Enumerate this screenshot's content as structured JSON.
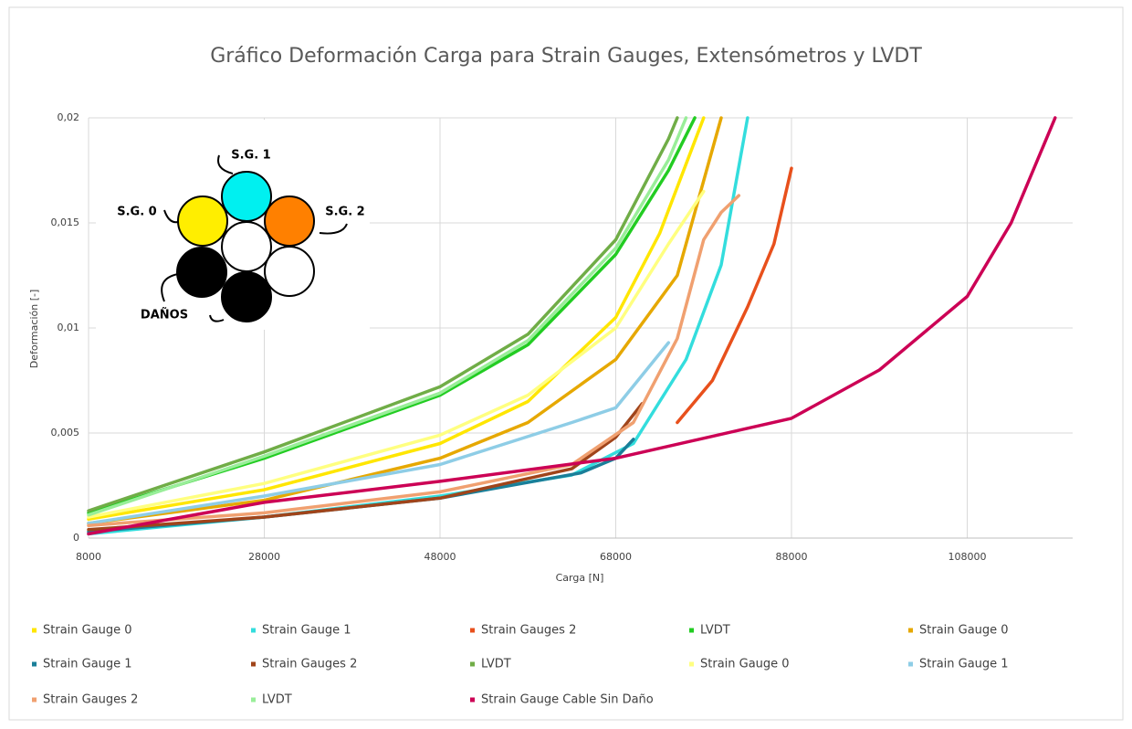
{
  "chart_data": {
    "type": "line",
    "title": "Gráfico Deformación Carga para Strain Gauges, Extensómetros y LVDT",
    "x_label": "Carga [N]",
    "y_label": "Deformación [-]",
    "xlim": [
      8000,
      120000
    ],
    "xticks": [
      8000,
      28000,
      48000,
      68000,
      88000,
      108000
    ],
    "ylim": [
      0,
      0.02
    ],
    "yticks": [
      0,
      {
        "value": 0.005,
        "label": "0,005"
      },
      {
        "value": 0.01,
        "label": "0,01"
      },
      {
        "value": 0.015,
        "label": "0,015"
      },
      {
        "value": 0.02,
        "label": "0,02"
      }
    ],
    "grid": true,
    "legend": "bottom",
    "annotations": [
      "S.G. 1",
      "S.G. 0",
      "S.G. 2",
      "DAÑOS"
    ],
    "series": [
      {
        "name": "Strain Gauge 0",
        "color": "#ffe600",
        "x": [
          8000,
          28000,
          48000,
          58000,
          68000,
          73000,
          78000
        ],
        "values": [
          0.0009,
          0.0023,
          0.0045,
          0.0065,
          0.0105,
          0.0145,
          0.02
        ]
      },
      {
        "name": "Strain Gauge 1",
        "color": "#33dddd",
        "x": [
          8000,
          28000,
          48000,
          63000,
          70000,
          76000,
          80000,
          83000
        ],
        "values": [
          0.0002,
          0.001,
          0.002,
          0.003,
          0.0045,
          0.0085,
          0.013,
          0.02
        ]
      },
      {
        "name": "Strain Gauges 2",
        "color": "#e8501c",
        "x": [
          75000,
          79000,
          83000,
          86000,
          88000
        ],
        "values": [
          0.0055,
          0.0075,
          0.011,
          0.014,
          0.0176
        ]
      },
      {
        "name": "LVDT",
        "color": "#22cc22",
        "x": [
          8000,
          28000,
          48000,
          58000,
          68000,
          74000,
          77000
        ],
        "values": [
          0.0012,
          0.0038,
          0.0068,
          0.0092,
          0.0135,
          0.0175,
          0.02
        ]
      },
      {
        "name": "Strain Gauge 0",
        "color": "#e6a800",
        "x": [
          8000,
          28000,
          48000,
          58000,
          68000,
          75000,
          80000
        ],
        "values": [
          0.0007,
          0.0018,
          0.0038,
          0.0055,
          0.0085,
          0.0125,
          0.02
        ]
      },
      {
        "name": "Strain Gauge 1",
        "color": "#1a7f99",
        "x": [
          8000,
          28000,
          48000,
          64000,
          68000,
          70000
        ],
        "values": [
          0.0003,
          0.001,
          0.0019,
          0.0031,
          0.0038,
          0.0047
        ]
      },
      {
        "name": "Strain Gauges 2",
        "color": "#a0441a",
        "x": [
          8000,
          28000,
          48000,
          63000,
          68000,
          71000
        ],
        "values": [
          0.0004,
          0.001,
          0.0019,
          0.0033,
          0.0048,
          0.0064
        ]
      },
      {
        "name": "LVDT",
        "color": "#70ad47",
        "x": [
          8000,
          28000,
          48000,
          58000,
          68000,
          74000,
          75000
        ],
        "values": [
          0.0013,
          0.0041,
          0.0072,
          0.0097,
          0.0142,
          0.019,
          0.02
        ]
      },
      {
        "name": "Strain Gauge 0",
        "color": "#ffff80",
        "x": [
          8000,
          28000,
          48000,
          58000,
          68000,
          74000,
          78000
        ],
        "values": [
          0.001,
          0.0026,
          0.0049,
          0.0068,
          0.01,
          0.014,
          0.0165
        ]
      },
      {
        "name": "Strain Gauge 1",
        "color": "#8ecde6",
        "x": [
          8000,
          28000,
          48000,
          63000,
          68000,
          74000
        ],
        "values": [
          0.0007,
          0.002,
          0.0035,
          0.0055,
          0.0062,
          0.0093
        ]
      },
      {
        "name": "Strain Gauges 2",
        "color": "#f0a070",
        "x": [
          8000,
          28000,
          48000,
          63000,
          70000,
          75000,
          78000,
          80000,
          82000
        ],
        "values": [
          0.0006,
          0.0012,
          0.0022,
          0.0035,
          0.0055,
          0.0095,
          0.0142,
          0.0155,
          0.0163
        ]
      },
      {
        "name": "LVDT",
        "color": "#99ee99",
        "x": [
          8000,
          28000,
          48000,
          58000,
          68000,
          74000,
          76000
        ],
        "values": [
          0.0011,
          0.0039,
          0.0069,
          0.0094,
          0.0138,
          0.018,
          0.02
        ]
      },
      {
        "name": "Strain Gauge Cable Sin Daño",
        "color": "#cc0055",
        "x": [
          8000,
          28000,
          48000,
          68000,
          88000,
          98000,
          108000,
          113000,
          118000
        ],
        "values": [
          0.0002,
          0.0017,
          0.0027,
          0.0038,
          0.0057,
          0.008,
          0.0115,
          0.015,
          0.02
        ]
      }
    ]
  }
}
